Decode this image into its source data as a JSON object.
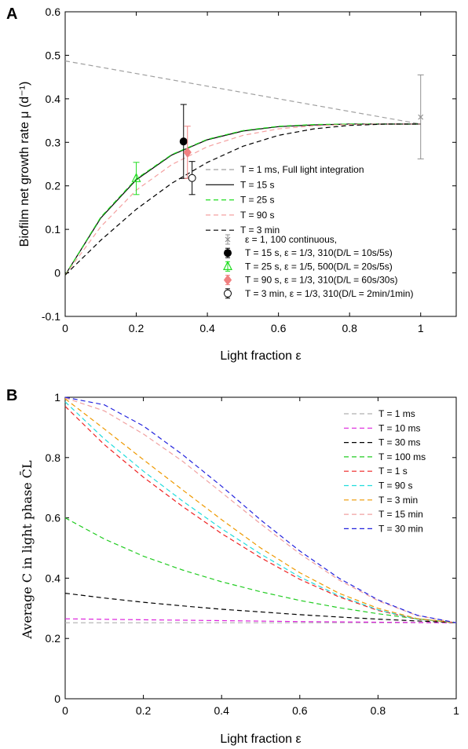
{
  "chart_data": [
    {
      "panel_label": "A",
      "type": "line",
      "xlabel": "Light fraction ε",
      "ylabel": "Biofilm net growth rate μ (d⁻¹)",
      "xlim": [
        0,
        1.1
      ],
      "ylim": [
        -0.1,
        0.6
      ],
      "xticks": [
        "0",
        "0.2",
        "0.4",
        "0.6",
        "0.8",
        "1"
      ],
      "yticks": [
        "-0.1",
        "0",
        "0.1",
        "0.2",
        "0.3",
        "0.4",
        "0.5",
        "0.6"
      ],
      "grid": false,
      "legend_position": "bottom-right",
      "series": [
        {
          "label": "T = 1 ms, Full light integration",
          "color": "#a0a0a0",
          "dash": "dashed",
          "x": [
            0,
            1
          ],
          "y": [
            0.487,
            0.342
          ]
        },
        {
          "label": "T = 15 s",
          "color": "#000000",
          "dash": "solid",
          "x": [
            0,
            0.1,
            0.2,
            0.3,
            0.4,
            0.5,
            0.6,
            0.7,
            0.8,
            0.9,
            1
          ],
          "y": [
            -0.005,
            0.126,
            0.214,
            0.271,
            0.306,
            0.326,
            0.336,
            0.34,
            0.342,
            0.342,
            0.342
          ]
        },
        {
          "label": "T = 25 s",
          "color": "#22dd22",
          "dash": "dashed",
          "x": [
            0,
            0.1,
            0.2,
            0.3,
            0.4,
            0.5,
            0.6,
            0.7,
            0.8,
            0.9,
            1
          ],
          "y": [
            -0.005,
            0.128,
            0.216,
            0.272,
            0.307,
            0.327,
            0.337,
            0.341,
            0.342,
            0.342,
            0.342
          ]
        },
        {
          "label": "T = 90 s",
          "color": "#f4a0a0",
          "dash": "dashed",
          "x": [
            0,
            0.1,
            0.2,
            0.3,
            0.4,
            0.5,
            0.6,
            0.7,
            0.8,
            0.9,
            1
          ],
          "y": [
            -0.005,
            0.106,
            0.19,
            0.249,
            0.29,
            0.316,
            0.331,
            0.338,
            0.341,
            0.342,
            0.342
          ]
        },
        {
          "label": "T = 3 min",
          "color": "#000000",
          "dash": "dashed",
          "x": [
            0,
            0.1,
            0.2,
            0.3,
            0.4,
            0.5,
            0.6,
            0.7,
            0.8,
            0.9,
            1
          ],
          "y": [
            -0.005,
            0.075,
            0.146,
            0.206,
            0.254,
            0.291,
            0.316,
            0.331,
            0.339,
            0.342,
            0.342
          ]
        }
      ],
      "points": [
        {
          "label": "ε = 1,    100 continuous,",
          "marker": "x",
          "color": "#909090",
          "x": 1,
          "y": 0.358,
          "err_low": 0.262,
          "err_high": 0.455
        },
        {
          "label": "T = 15 s,   ε = 1/3, 310(D/L = 10s/5s)",
          "marker": "filled-circle",
          "color": "#000000",
          "x": 0.333,
          "y": 0.302,
          "err_low": 0.217,
          "err_high": 0.387
        },
        {
          "label": "T = 25 s,   ε = 1/5, 500(D/L = 20s/5s)",
          "marker": "triangle",
          "color": "#22dd22",
          "x": 0.2,
          "y": 0.217,
          "err_low": 0.18,
          "err_high": 0.254
        },
        {
          "label": "T = 90 s,   ε = 1/3, 310(D/L = 60s/30s)",
          "marker": "diamond",
          "color": "#f08080",
          "x": 0.344,
          "y": 0.277,
          "err_low": 0.217,
          "err_high": 0.337
        },
        {
          "label": "T = 3 min,  ε = 1/3, 310(D/L = 2min/1min)",
          "marker": "open-circle",
          "color": "#000000",
          "x": 0.357,
          "y": 0.218,
          "err_low": 0.18,
          "err_high": 0.256
        }
      ]
    },
    {
      "panel_label": "B",
      "type": "line",
      "xlabel": "Light fraction ε",
      "ylabel": "Average C in light phase C̄L",
      "xlim": [
        0,
        1
      ],
      "ylim": [
        0,
        1
      ],
      "xticks": [
        "0",
        "0.2",
        "0.4",
        "0.6",
        "0.8",
        "1"
      ],
      "yticks": [
        "0",
        "0.2",
        "0.4",
        "0.6",
        "0.8",
        "1"
      ],
      "grid": false,
      "legend_position": "top-right",
      "series": [
        {
          "label": "T = 1 ms",
          "color": "#b0b0b0",
          "dash": "dashed",
          "x": [
            0,
            1
          ],
          "y": [
            0.252,
            0.252
          ]
        },
        {
          "label": "T = 10 ms",
          "color": "#dd22dd",
          "dash": "dashed",
          "x": [
            0,
            0.2,
            0.4,
            0.6,
            0.8,
            1
          ],
          "y": [
            0.265,
            0.262,
            0.259,
            0.256,
            0.254,
            0.252
          ]
        },
        {
          "label": "T = 30 ms",
          "color": "#000000",
          "dash": "dashed",
          "x": [
            0,
            0.1,
            0.2,
            0.3,
            0.4,
            0.5,
            0.6,
            0.7,
            0.8,
            0.9,
            1
          ],
          "y": [
            0.35,
            0.334,
            0.32,
            0.308,
            0.297,
            0.288,
            0.279,
            0.271,
            0.264,
            0.258,
            0.252
          ]
        },
        {
          "label": "T = 100 ms",
          "color": "#22cc22",
          "dash": "dashed",
          "x": [
            0,
            0.1,
            0.2,
            0.3,
            0.4,
            0.5,
            0.6,
            0.7,
            0.8,
            0.9,
            1
          ],
          "y": [
            0.6,
            0.53,
            0.473,
            0.427,
            0.388,
            0.355,
            0.326,
            0.302,
            0.282,
            0.265,
            0.252
          ]
        },
        {
          "label": "T = 1 s",
          "color": "#ee2222",
          "dash": "dashed",
          "x": [
            0,
            0.1,
            0.2,
            0.3,
            0.4,
            0.5,
            0.6,
            0.7,
            0.8,
            0.9,
            1
          ],
          "y": [
            0.97,
            0.843,
            0.735,
            0.638,
            0.548,
            0.468,
            0.396,
            0.338,
            0.293,
            0.264,
            0.252
          ]
        },
        {
          "label": "T = 90 s",
          "color": "#22dddd",
          "dash": "dashed",
          "x": [
            0,
            0.1,
            0.2,
            0.3,
            0.4,
            0.5,
            0.6,
            0.7,
            0.8,
            0.9,
            1
          ],
          "y": [
            0.985,
            0.862,
            0.755,
            0.656,
            0.564,
            0.48,
            0.404,
            0.342,
            0.295,
            0.264,
            0.252
          ]
        },
        {
          "label": "T = 3 min",
          "color": "#ee9900",
          "dash": "dashed",
          "x": [
            0,
            0.1,
            0.2,
            0.3,
            0.4,
            0.5,
            0.6,
            0.7,
            0.8,
            0.9,
            1
          ],
          "y": [
            0.995,
            0.895,
            0.793,
            0.693,
            0.594,
            0.5,
            0.418,
            0.35,
            0.3,
            0.266,
            0.252
          ]
        },
        {
          "label": "T = 15 min",
          "color": "#f0a0a0",
          "dash": "dashed",
          "x": [
            0,
            0.1,
            0.2,
            0.3,
            0.4,
            0.5,
            0.6,
            0.7,
            0.8,
            0.9,
            1
          ],
          "y": [
            0.998,
            0.955,
            0.878,
            0.788,
            0.684,
            0.58,
            0.481,
            0.394,
            0.325,
            0.276,
            0.252
          ]
        },
        {
          "label": "T = 30 min",
          "color": "#2222dd",
          "dash": "dashed",
          "x": [
            0,
            0.1,
            0.2,
            0.3,
            0.4,
            0.5,
            0.6,
            0.7,
            0.8,
            0.9,
            1
          ],
          "y": [
            1.0,
            0.975,
            0.905,
            0.81,
            0.705,
            0.593,
            0.49,
            0.4,
            0.328,
            0.277,
            0.252
          ]
        }
      ]
    }
  ]
}
